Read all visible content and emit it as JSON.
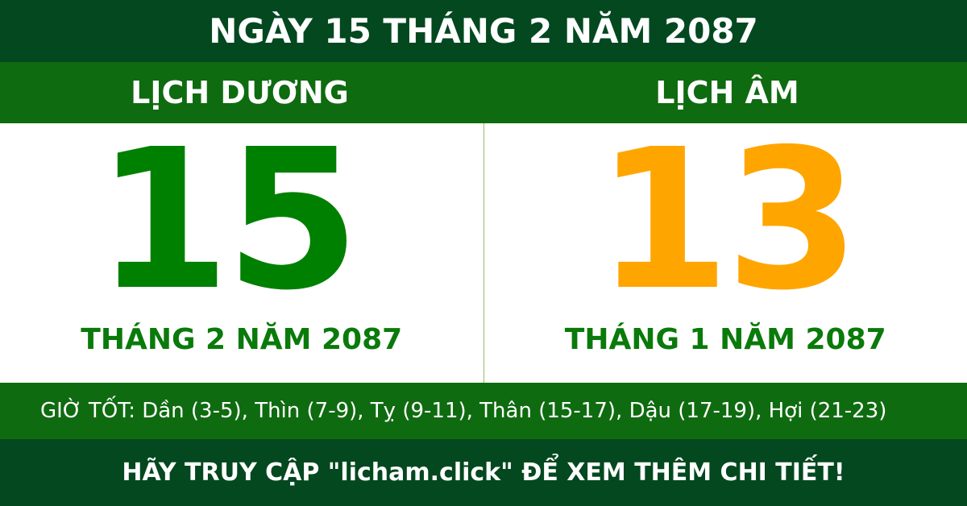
{
  "title": "NGÀY 15 THÁNG 2 NĂM 2087",
  "solar": {
    "heading": "LỊCH DƯƠNG",
    "day": "15",
    "month_year": "THÁNG 2 NĂM 2087",
    "color": "#008000"
  },
  "lunar": {
    "heading": "LỊCH ÂM",
    "day": "13",
    "month_year": "THÁNG 1 NĂM 2087",
    "color": "#ffa500"
  },
  "good_hours": "GIỜ TỐT: Dần (3-5), Thìn (7-9), Tỵ (9-11), Thân (15-17), Dậu (17-19), Hợi (21-23)",
  "footer": "HÃY TRUY CẬP \"licham.click\" ĐỂ XEM THÊM CHI TIẾT!"
}
